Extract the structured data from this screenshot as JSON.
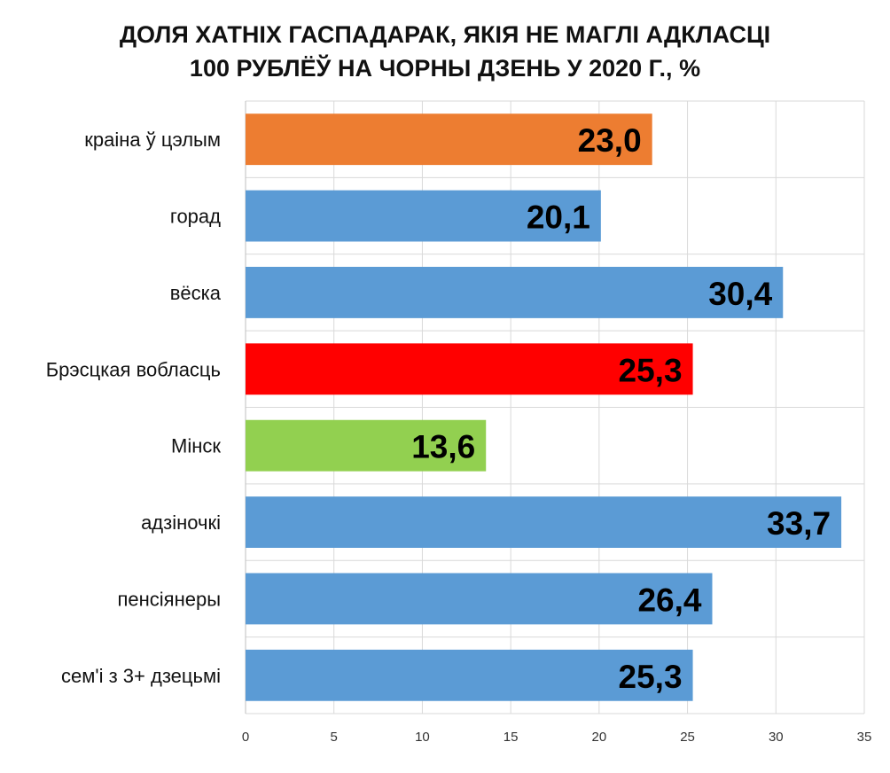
{
  "chart_data": {
    "type": "bar",
    "orientation": "horizontal",
    "title_lines": [
      "ДОЛЯ ХАТНІХ ГАСПАДАРАК, ЯКІЯ НЕ МАГЛІ АДКЛАСЦІ",
      "100 РУБЛЁЎ НА ЧОРНЫ ДЗЕНЬ У 2020 Г., %"
    ],
    "categories": [
      "краіна ў цэлым",
      "горад",
      "вёска",
      "Брэсцкая вобласць",
      "Мінск",
      "адзіночкі",
      "пенсіянеры",
      "сем'і з 3+ дзецьмі"
    ],
    "values": [
      23.0,
      20.1,
      30.4,
      25.3,
      13.6,
      33.7,
      26.4,
      25.3
    ],
    "value_labels": [
      "23,0",
      "20,1",
      "30,4",
      "25,3",
      "13,6",
      "33,7",
      "26,4",
      "25,3"
    ],
    "colors": [
      "#ED7D31",
      "#5B9BD5",
      "#5B9BD5",
      "#FF0000",
      "#92D050",
      "#5B9BD5",
      "#5B9BD5",
      "#5B9BD5"
    ],
    "xlim": [
      0,
      35
    ],
    "x_ticks": [
      0,
      5,
      10,
      15,
      20,
      25,
      30,
      35
    ],
    "x_tick_labels": [
      "0",
      "5",
      "10",
      "15",
      "20",
      "25",
      "30",
      "35"
    ],
    "grid": true,
    "legend": "none"
  }
}
